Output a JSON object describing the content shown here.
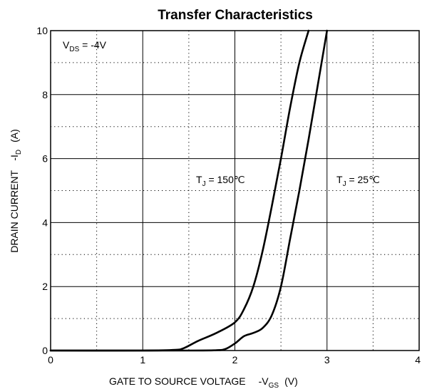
{
  "chart_data": {
    "type": "line",
    "title": "Transfer Characteristics",
    "xlabel": {
      "main": "GATE TO SOURCE VOLTAGE",
      "symbol": "-V",
      "subscript": "GS",
      "unit": "(V)"
    },
    "ylabel": {
      "main": "DRAIN CURRENT",
      "symbol": "-I",
      "subscript": "D",
      "unit": "(A)"
    },
    "xlim": [
      0,
      4
    ],
    "ylim": [
      0,
      10
    ],
    "x_ticks": [
      0,
      1,
      2,
      3,
      4
    ],
    "y_ticks": [
      0,
      2,
      4,
      6,
      8,
      10
    ],
    "x_tick_labels": [
      "0",
      "1",
      "2",
      "3",
      "4"
    ],
    "y_tick_labels": [
      "0",
      "2",
      "4",
      "6",
      "8",
      "10"
    ],
    "major_grid": "solid",
    "minor_grid": "dotted",
    "condition": {
      "prefix": "V",
      "subscript": "DS",
      "suffix": " = -4V"
    },
    "series": [
      {
        "label": {
          "prefix": "T",
          "subscript": "J",
          "suffix": " = 150℃"
        },
        "x": [
          0,
          1.0,
          1.35,
          1.45,
          1.6,
          1.8,
          2.0,
          2.1,
          2.2,
          2.3,
          2.4,
          2.5,
          2.6,
          2.7,
          2.8
        ],
        "y": [
          0,
          0,
          0.02,
          0.08,
          0.3,
          0.55,
          0.88,
          1.3,
          2.0,
          3.1,
          4.5,
          6.0,
          7.6,
          9.0,
          10.0
        ]
      },
      {
        "label": {
          "prefix": "T",
          "subscript": "J",
          "suffix": " = 25℃"
        },
        "x": [
          0,
          1.5,
          1.8,
          1.9,
          2.0,
          2.1,
          2.2,
          2.3,
          2.4,
          2.5,
          2.6,
          2.7,
          2.8,
          2.9,
          3.0
        ],
        "y": [
          0,
          0,
          0.01,
          0.05,
          0.22,
          0.45,
          0.55,
          0.7,
          1.1,
          2.0,
          3.5,
          5.0,
          6.6,
          8.3,
          10.0
        ]
      }
    ]
  }
}
